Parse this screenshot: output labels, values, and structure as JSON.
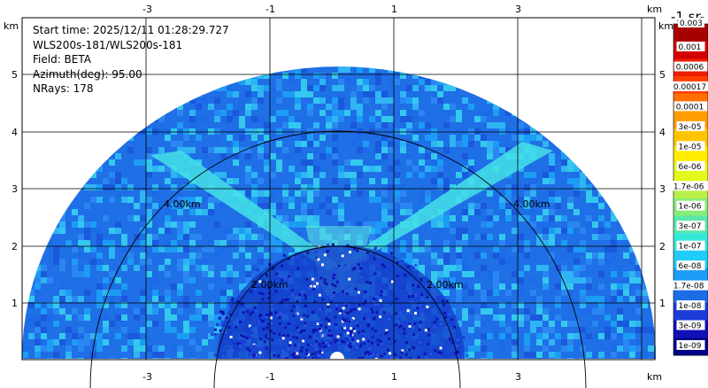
{
  "info": {
    "start_time": "Start time: 2025/12/11 01:28:29.727",
    "instrument": "WLS200s-181/WLS200s-181",
    "field": "Field: BETA",
    "azimuth": "Azimuth(deg): 95.00",
    "nrays": "NRays: 178"
  },
  "axes": {
    "x_unit": "km",
    "y_unit": "km",
    "x_ticks": [
      "-3",
      "-1",
      "1",
      "3"
    ],
    "y_ticks": [
      "1",
      "2",
      "3",
      "4",
      "5"
    ]
  },
  "range_rings": {
    "inner_label": "2.00km",
    "outer_label": "4.00km"
  },
  "colorbar": {
    "title": "-1 sr-",
    "top_label": "0.003",
    "labels": [
      "0.001",
      "0.0006",
      "0.00017",
      "0.0001",
      "3e-05",
      "1e-05",
      "6e-06",
      "1.7e-06",
      "1e-06",
      "3e-07",
      "1e-07",
      "6e-08",
      "1.7e-08",
      "1e-08",
      "3e-09",
      "1e-09"
    ],
    "colors": [
      "#a80000",
      "#d40000",
      "#ee1c00",
      "#ff4000",
      "#ff7000",
      "#ff9c00",
      "#ffc400",
      "#ffec00",
      "#e4f81c",
      "#b8f048",
      "#88ec78",
      "#5ae8a8",
      "#34e8d8",
      "#20ccf8",
      "#1c9cf4",
      "#1c6ce8",
      "#1c3cd8",
      "#1010b8",
      "#000088"
    ]
  },
  "plot_colors": {
    "background_blue": "#1f6fe6",
    "light_band": "#44e2e6",
    "near_field_blue": "#1238c8"
  }
}
